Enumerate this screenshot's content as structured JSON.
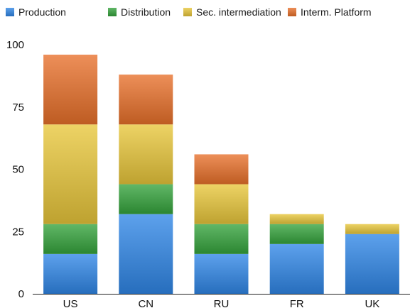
{
  "chart_data": {
    "type": "bar",
    "stacked": true,
    "title": "",
    "xlabel": "",
    "ylabel": "",
    "categories": [
      "US",
      "CN",
      "RU",
      "FR",
      "UK"
    ],
    "ylim": [
      0,
      100
    ],
    "yticks": [
      0,
      25,
      50,
      75,
      100
    ],
    "grid": false,
    "legend_position": "top",
    "series": [
      {
        "name": "Production",
        "color": "#2f86e6",
        "values": [
          16,
          32,
          16,
          20,
          24
        ]
      },
      {
        "name": "Distribution",
        "color": "#35a33c",
        "values": [
          12,
          12,
          12,
          8,
          0
        ]
      },
      {
        "name": "Sec. intermediation",
        "color": "#e8c63a",
        "values": [
          40,
          24,
          16,
          4,
          4
        ]
      },
      {
        "name": "Interm. Platform",
        "color": "#e8702a",
        "values": [
          28,
          20,
          12,
          0,
          0
        ]
      }
    ]
  }
}
